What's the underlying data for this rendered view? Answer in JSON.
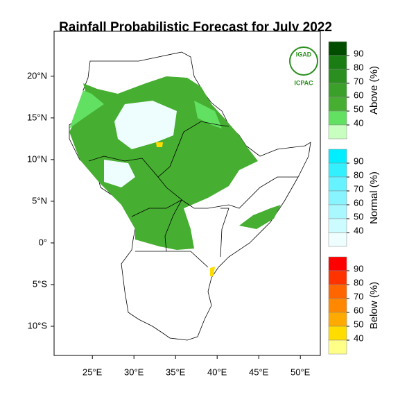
{
  "title": "Rainfall Probabilistic Forecast for July 2022",
  "map": {
    "xlim": [
      20.4,
      52.4
    ],
    "ylim": [
      -13.5,
      25.4
    ],
    "xticks": [
      {
        "value": 25,
        "label": "25°E"
      },
      {
        "value": 30,
        "label": "30°E"
      },
      {
        "value": 35,
        "label": "35°E"
      },
      {
        "value": 40,
        "label": "40°E"
      },
      {
        "value": 45,
        "label": "45°E"
      },
      {
        "value": 50,
        "label": "50°E"
      }
    ],
    "yticks": [
      {
        "value": 20,
        "label": "20°N"
      },
      {
        "value": 15,
        "label": "15°N"
      },
      {
        "value": 10,
        "label": "10°N"
      },
      {
        "value": 5,
        "label": "5°N"
      },
      {
        "value": 0,
        "label": "0°"
      },
      {
        "value": -5,
        "label": "5°S"
      },
      {
        "value": -10,
        "label": "10°S"
      }
    ]
  },
  "logo": {
    "name": "IGAD",
    "org": "ICPAC"
  },
  "legend": [
    {
      "title": "Above (%)",
      "ticks": [
        90,
        80,
        70,
        60,
        50,
        40
      ],
      "colors": [
        "#004d00",
        "#1a7d14",
        "#2a8f1e",
        "#3aa02a",
        "#46ae30",
        "#62e062",
        "#c8ffc0"
      ]
    },
    {
      "title": "Normal (%)",
      "ticks": [
        90,
        80,
        70,
        60,
        50,
        40
      ],
      "colors": [
        "#00eeff",
        "#33f0ff",
        "#66f2ff",
        "#88f4ff",
        "#aaf8ff",
        "#ccfcff",
        "#eefefe"
      ]
    },
    {
      "title": "Below (%)",
      "ticks": [
        90,
        80,
        70,
        60,
        50,
        40
      ],
      "colors": [
        "#ff0000",
        "#ff3300",
        "#ff6600",
        "#ff8800",
        "#ffaa00",
        "#ffdd00",
        "#ffff88"
      ]
    }
  ]
}
